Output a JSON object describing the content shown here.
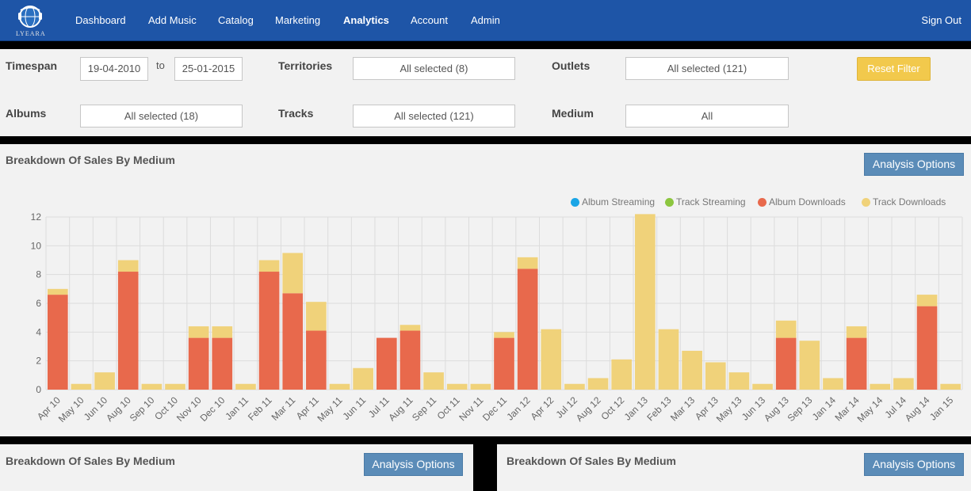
{
  "brand": {
    "logo_text": "LYEARA"
  },
  "nav": {
    "items": [
      "Dashboard",
      "Add Music",
      "Catalog",
      "Marketing",
      "Analytics",
      "Account",
      "Admin"
    ],
    "active": "Analytics",
    "sign_out": "Sign Out"
  },
  "filters": {
    "timespan_label": "Timespan",
    "from": "19-04-2010",
    "to_label": "to",
    "to": "25-01-2015",
    "territories_label": "Territories",
    "territories_value": "All selected (8)",
    "outlets_label": "Outlets",
    "outlets_value": "All selected (121)",
    "reset_label": "Reset Filter",
    "albums_label": "Albums",
    "albums_value": "All selected (18)",
    "tracks_label": "Tracks",
    "tracks_value": "All selected (121)",
    "medium_label": "Medium",
    "medium_value": "All"
  },
  "panels": {
    "main": {
      "title": "Breakdown Of Sales By Medium",
      "button": "Analysis Options"
    },
    "bottom_left": {
      "title": "Breakdown Of Sales By Medium",
      "button": "Analysis Options"
    },
    "bottom_right": {
      "title": "Breakdown Of Sales By Medium",
      "button": "Analysis Options"
    }
  },
  "legend": [
    {
      "label": "Album Streaming",
      "color": "#1aa5e6"
    },
    {
      "label": "Track Streaming",
      "color": "#8cc63f"
    },
    {
      "label": "Album Downloads",
      "color": "#e8694c"
    },
    {
      "label": "Track Downloads",
      "color": "#f0d27a"
    }
  ],
  "chart_data": {
    "type": "bar",
    "stacked": true,
    "categories": [
      "Apr 10",
      "May 10",
      "Jun 10",
      "Aug 10",
      "Sep 10",
      "Oct 10",
      "Nov 10",
      "Dec 10",
      "Jan 11",
      "Feb 11",
      "Mar 11",
      "Apr 11",
      "May 11",
      "Jun 11",
      "Jul 11",
      "Aug 11",
      "Sep 11",
      "Oct 11",
      "Nov 11",
      "Dec 11",
      "Jan 12",
      "Apr 12",
      "Jul 12",
      "Aug 12",
      "Oct 12",
      "Jan 13",
      "Feb 13",
      "Mar 13",
      "Apr 13",
      "May 13",
      "Jun 13",
      "Aug 13",
      "Sep 13",
      "Jan 14",
      "Mar 14",
      "May 14",
      "Jul 14",
      "Aug 14",
      "Jan 15"
    ],
    "series": [
      {
        "name": "Album Streaming",
        "values": [
          0,
          0,
          0,
          0,
          0,
          0,
          0,
          0,
          0,
          0,
          0,
          0,
          0,
          0,
          0,
          0,
          0,
          0,
          0,
          0,
          0,
          0,
          0,
          0,
          0,
          0,
          0,
          0,
          0,
          0,
          0,
          0,
          0,
          0,
          0,
          0,
          0,
          0,
          0
        ]
      },
      {
        "name": "Track Streaming",
        "values": [
          0,
          0,
          0,
          0,
          0,
          0,
          0,
          0,
          0,
          0,
          0,
          0,
          0,
          0,
          0,
          0,
          0,
          0,
          0,
          0,
          0,
          0,
          0,
          0,
          0,
          0,
          0,
          0,
          0,
          0,
          0,
          0,
          0,
          0,
          0,
          0,
          0,
          0,
          0
        ]
      },
      {
        "name": "Album Downloads",
        "values": [
          6.6,
          0,
          0,
          8.2,
          0,
          0,
          3.6,
          3.6,
          0,
          8.2,
          6.7,
          4.1,
          0,
          0,
          3.6,
          4.1,
          0,
          0,
          0,
          3.6,
          8.4,
          0,
          0,
          0,
          0,
          0,
          0,
          0,
          0,
          0,
          0,
          3.6,
          0,
          0,
          3.6,
          0,
          0,
          5.8,
          0
        ]
      },
      {
        "name": "Track Downloads",
        "values": [
          0.4,
          0.4,
          1.2,
          0.8,
          0.4,
          0.4,
          0.8,
          0.8,
          0.4,
          0.8,
          2.8,
          2.0,
          0.4,
          1.5,
          0,
          0.4,
          1.2,
          0.4,
          0.4,
          0.4,
          0.8,
          4.2,
          0.4,
          0.8,
          2.1,
          12.2,
          4.2,
          2.7,
          1.9,
          1.2,
          0.4,
          1.2,
          3.4,
          0.8,
          0.8,
          0.4,
          0.8,
          0.8,
          0.4
        ]
      }
    ],
    "yticks": [
      0,
      2,
      4,
      6,
      8,
      10,
      12
    ],
    "ylim": [
      0,
      12
    ],
    "grid": true,
    "legend_position": "top-right"
  }
}
